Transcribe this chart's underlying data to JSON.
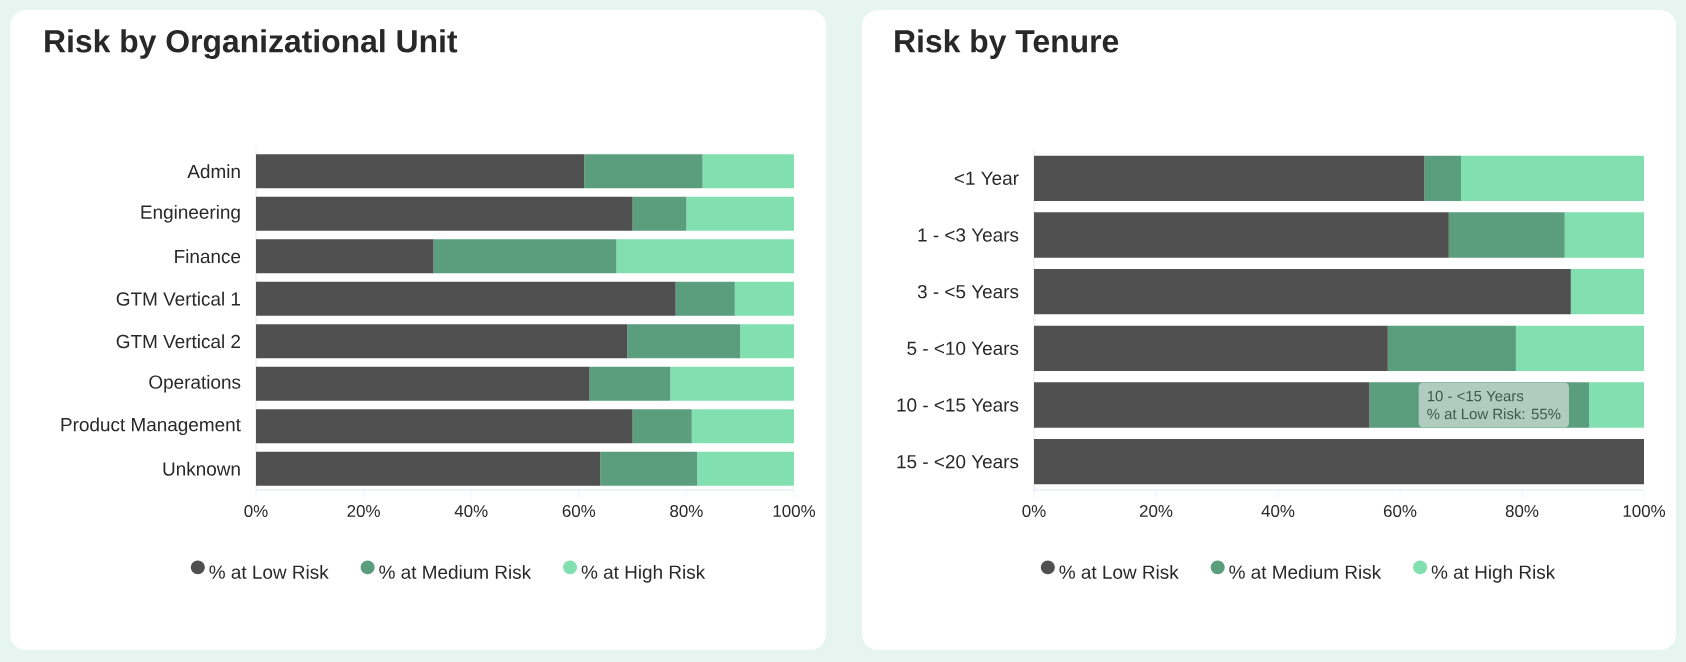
{
  "chart_data": [
    {
      "type": "bar",
      "orientation": "horizontal",
      "stacked": true,
      "title": "Risk by Organizational Unit",
      "categories": [
        "Admin",
        "Engineering",
        "Finance",
        "GTM Vertical 1",
        "GTM Vertical 2",
        "Operations",
        "Product Management",
        "Unknown"
      ],
      "series": [
        {
          "name": "% at Low Risk",
          "color": "#505050",
          "values": [
            61,
            70,
            33,
            78,
            69,
            62,
            70,
            64
          ]
        },
        {
          "name": "% at Medium Risk",
          "color": "#5a9e7e",
          "values": [
            22,
            10,
            34,
            11,
            21,
            15,
            11,
            18
          ]
        },
        {
          "name": "% at High Risk",
          "color": "#82e0b0",
          "values": [
            17,
            20,
            33,
            11,
            10,
            23,
            19,
            18
          ]
        }
      ],
      "xlim": [
        0,
        100
      ],
      "xticks": [
        {
          "value": 0,
          "label": "0%"
        },
        {
          "value": 20,
          "label": "20%"
        },
        {
          "value": 40,
          "label": "40%"
        },
        {
          "value": 60,
          "label": "60%"
        },
        {
          "value": 80,
          "label": "80%"
        },
        {
          "value": 100,
          "label": "100%"
        }
      ],
      "legend": "bottom"
    },
    {
      "type": "bar",
      "orientation": "horizontal",
      "stacked": true,
      "title": "Risk by Tenure",
      "categories": [
        "<1 Year",
        "1 - <3 Years",
        "3 - <5 Years",
        "5 - <10 Years",
        "10 - <15 Years",
        "15 - <20 Years"
      ],
      "series": [
        {
          "name": "% at Low Risk",
          "color": "#505050",
          "values": [
            64,
            68,
            88,
            58,
            55,
            100
          ]
        },
        {
          "name": "% at Medium Risk",
          "color": "#5a9e7e",
          "values": [
            6,
            19,
            0,
            21,
            36,
            0
          ]
        },
        {
          "name": "% at High Risk",
          "color": "#82e0b0",
          "values": [
            30,
            13,
            12,
            21,
            9,
            0
          ]
        }
      ],
      "xlim": [
        0,
        100
      ],
      "xticks": [
        {
          "value": 0,
          "label": "0%"
        },
        {
          "value": 20,
          "label": "20%"
        },
        {
          "value": 40,
          "label": "40%"
        },
        {
          "value": 60,
          "label": "60%"
        },
        {
          "value": 80,
          "label": "80%"
        },
        {
          "value": 100,
          "label": "100%"
        }
      ],
      "legend": "bottom",
      "annotations": [
        "10 - <15 Years",
        "% at Low Risk: 55%"
      ]
    }
  ]
}
